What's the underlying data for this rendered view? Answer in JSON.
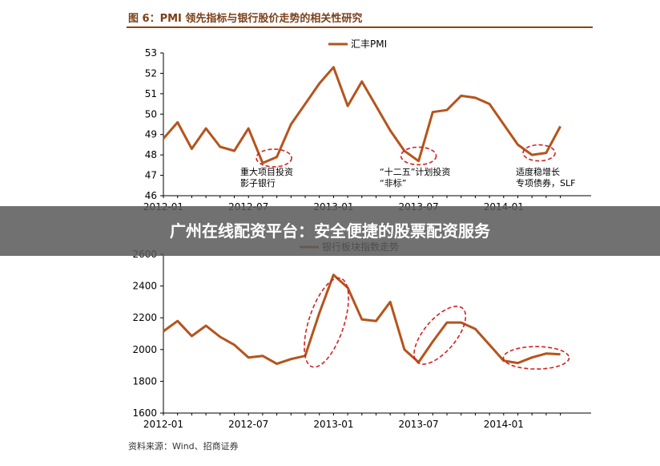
{
  "figure": {
    "title": "图 6：PMI 领先指标与银行股价走势的相关性研究",
    "source": "资料来源：Wind、招商证券"
  },
  "banner": {
    "text": "广州在线配资平台：安全便捷的股票配资服务"
  },
  "colors": {
    "line": "#b5541c",
    "ellipse": "#d42020",
    "title": "#7a3f1a",
    "banner_bg": "#5a5a5a"
  },
  "chart_data": [
    {
      "type": "line",
      "x_tick_labels": [
        "2012-01",
        "2012-07",
        "2013-01",
        "2013-07",
        "2014-01"
      ],
      "ylim": [
        46,
        53
      ],
      "y_ticks": [
        46,
        47,
        48,
        49,
        50,
        51,
        52,
        53
      ],
      "legend": "top-center",
      "series": [
        {
          "name": "汇丰PMI",
          "values": [
            48.8,
            49.6,
            48.3,
            49.3,
            48.4,
            48.2,
            49.3,
            47.6,
            47.9,
            49.5,
            50.5,
            51.5,
            52.3,
            50.4,
            51.6,
            50.4,
            49.2,
            48.2,
            47.7,
            50.1,
            50.2,
            50.9,
            50.8,
            50.5,
            49.5,
            48.5,
            48.0,
            48.1,
            49.4
          ]
        }
      ],
      "annotations": [
        {
          "text": "重大项目投资\n影子银行"
        },
        {
          "text": "“十二五”计划投资\n“非标”"
        },
        {
          "text": "适度稳增长\n专项债券，SLF"
        }
      ]
    },
    {
      "type": "line",
      "x_tick_labels": [
        "2012-01",
        "2012-07",
        "2013-01",
        "2013-07",
        "2014-01"
      ],
      "ylim": [
        1600,
        2600
      ],
      "y_ticks": [
        1600,
        1800,
        2000,
        2200,
        2400,
        2600
      ],
      "legend": "top-center",
      "series": [
        {
          "name": "银行板块指数走势",
          "values": [
            2115,
            2180,
            2085,
            2150,
            2080,
            2030,
            1950,
            1960,
            1910,
            1940,
            1960,
            2230,
            2470,
            2390,
            2190,
            2180,
            2300,
            2000,
            1920,
            2050,
            2170,
            2170,
            2130,
            2030,
            1930,
            1915,
            1950,
            1975,
            1970
          ]
        }
      ]
    }
  ]
}
